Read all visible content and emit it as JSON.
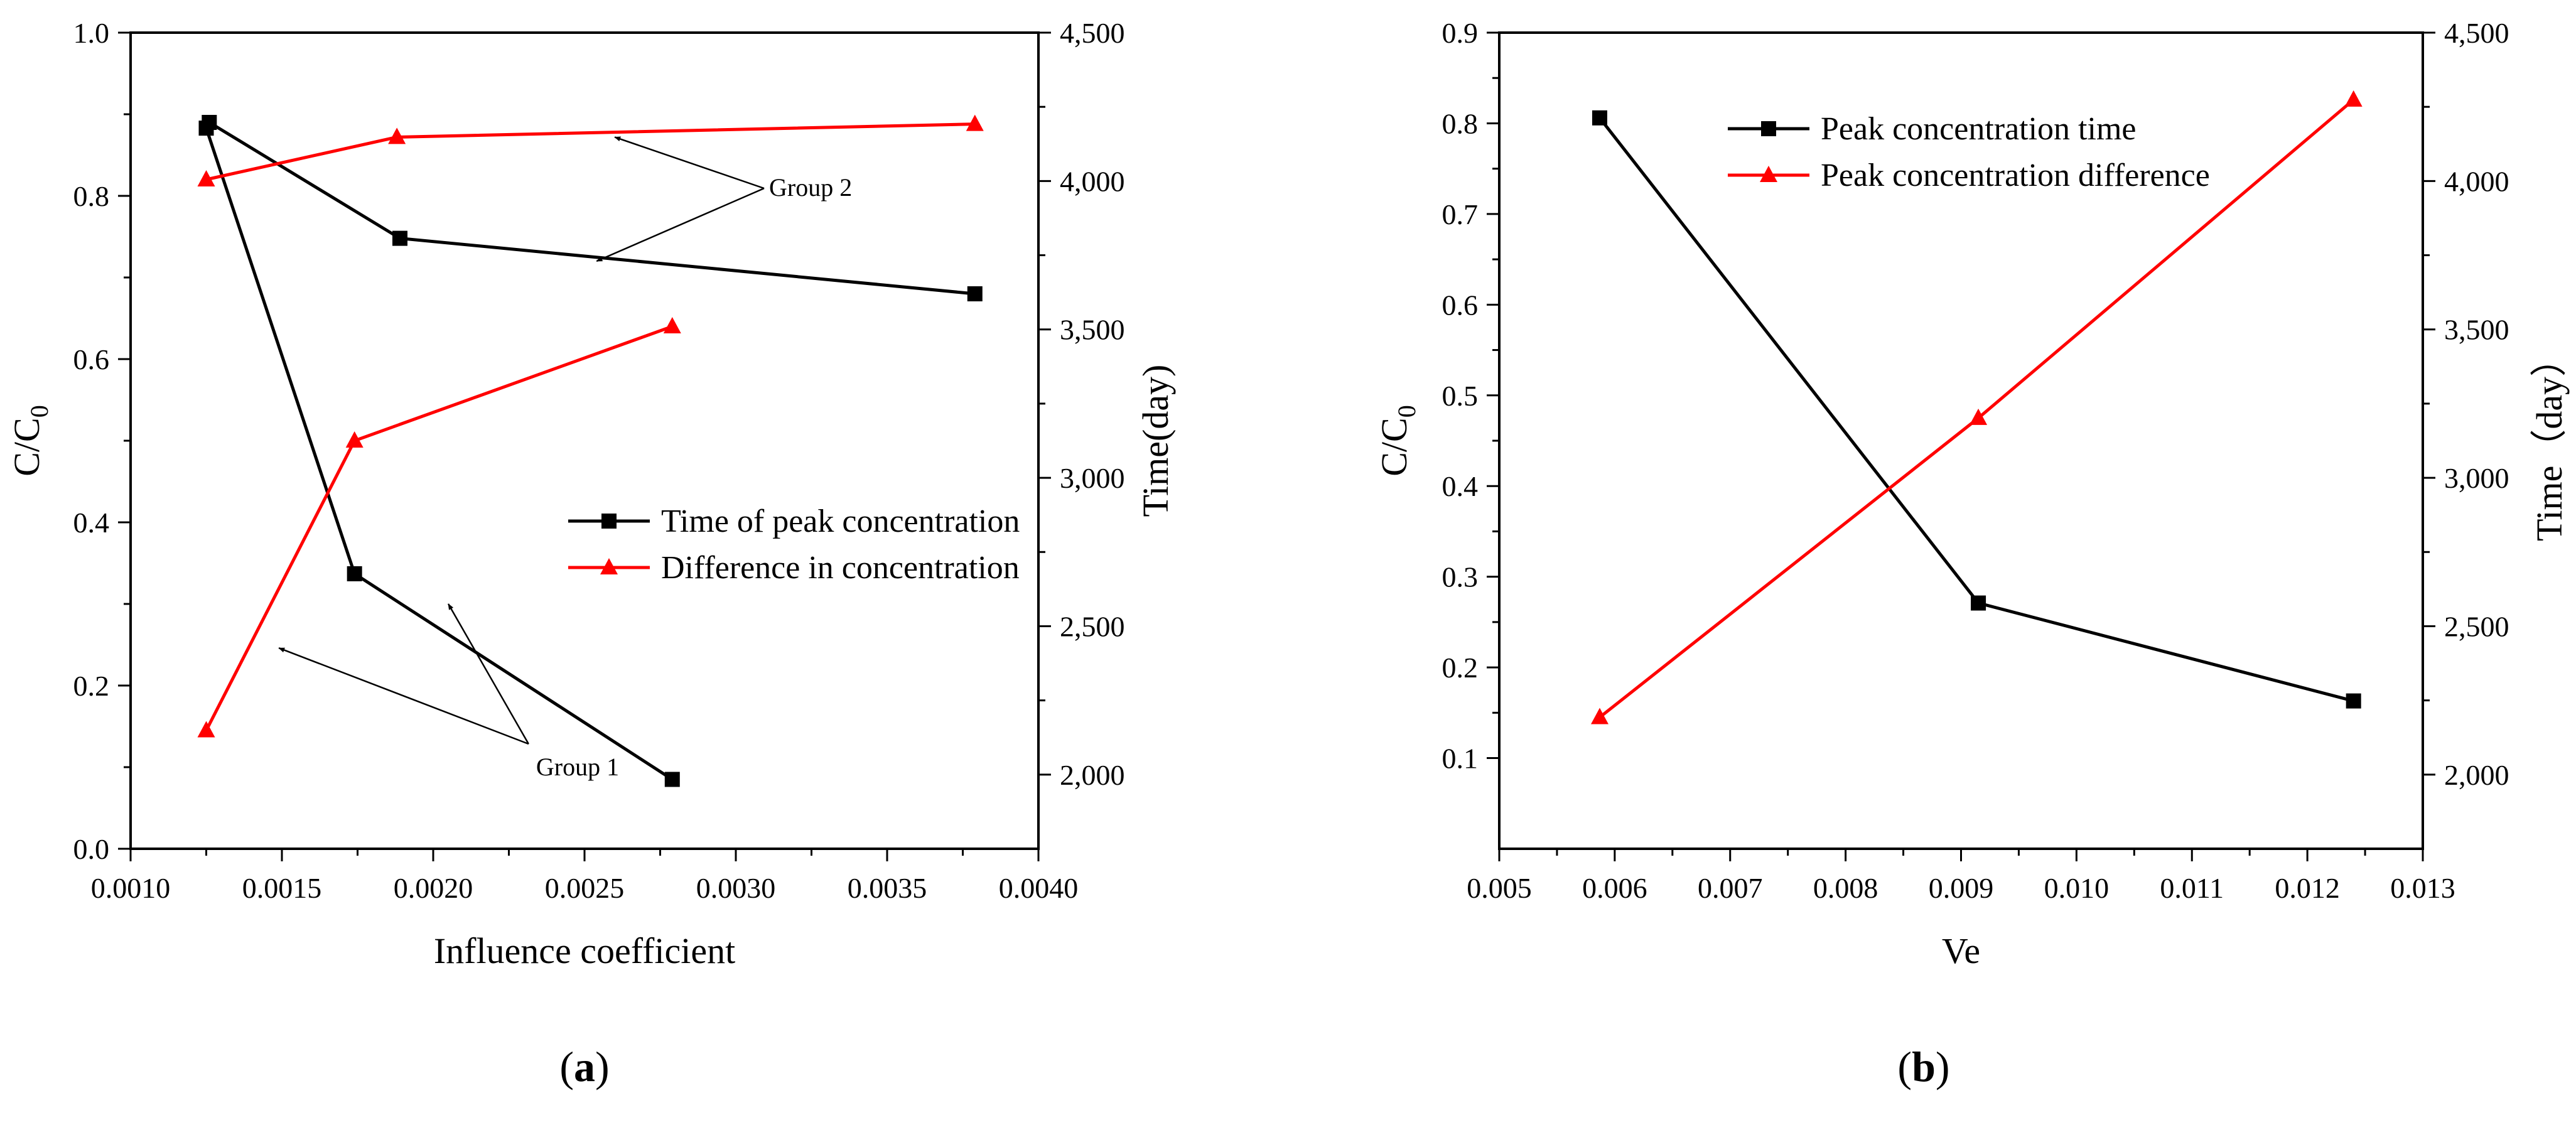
{
  "chart_data": [
    {
      "panel": "a",
      "type": "line",
      "panel_label_letter": "a",
      "xlabel": "Influence coefficient",
      "ylabel_left": {
        "main": "C/C",
        "sub": "0"
      },
      "ylabel_right": "Time(day)",
      "xlim": [
        0.001,
        0.004
      ],
      "ylim_left": [
        0.0,
        1.0
      ],
      "ylim_right": [
        1750,
        4500
      ],
      "x_ticks": [
        0.001,
        0.0015,
        0.002,
        0.0025,
        0.003,
        0.0035,
        0.004
      ],
      "x_tick_labels": [
        "0.0010",
        "0.0015",
        "0.0020",
        "0.0025",
        "0.0030",
        "0.0035",
        "0.0040"
      ],
      "y_left_ticks": [
        0.0,
        0.2,
        0.4,
        0.6,
        0.8,
        1.0
      ],
      "y_left_tick_labels": [
        "0.0",
        "0.2",
        "0.4",
        "0.6",
        "0.8",
        "1.0"
      ],
      "y_right_ticks": [
        2000,
        2500,
        3000,
        3500,
        4000,
        4500
      ],
      "y_right_tick_labels": [
        "2,000",
        "2,500",
        "3,000",
        "3,500",
        "4,000",
        "4,500"
      ],
      "grid": false,
      "legend_position": "center-right",
      "series": [
        {
          "name": "Time of peak concentration",
          "axis": "left",
          "color": "#000000",
          "marker": "square",
          "group": 1,
          "x": [
            0.00125,
            0.00174,
            0.00279
          ],
          "y": [
            0.883,
            0.337,
            0.085
          ]
        },
        {
          "name": "Difference in concentration",
          "axis": "left",
          "color": "#ff0000",
          "marker": "triangle",
          "group": 1,
          "x": [
            0.00125,
            0.00174,
            0.00279
          ],
          "y": [
            0.145,
            0.5,
            0.64
          ]
        },
        {
          "axis": "left",
          "color": "#000000",
          "marker": "square",
          "group": 2,
          "x": [
            0.00126,
            0.00189,
            0.00379
          ],
          "y": [
            0.89,
            0.748,
            0.68
          ]
        },
        {
          "axis": "left",
          "color": "#ff0000",
          "marker": "triangle",
          "group": 2,
          "x": [
            0.00125,
            0.00188,
            0.00379
          ],
          "y": [
            0.82,
            0.872,
            0.888
          ]
        }
      ],
      "annotations": [
        {
          "text": "Group 2",
          "x": 0.00311,
          "y": 0.8,
          "arrows_to": [
            {
              "x": 0.0026,
              "y": 0.872
            },
            {
              "x": 0.00254,
              "y": 0.72
            }
          ]
        },
        {
          "text": "Group 1",
          "x": 0.00234,
          "y": 0.09,
          "arrows_to": [
            {
              "x": 0.00149,
              "y": 0.246
            },
            {
              "x": 0.00205,
              "y": 0.3
            }
          ]
        }
      ]
    },
    {
      "panel": "b",
      "type": "line",
      "panel_label_letter": "b",
      "xlabel": "Ve",
      "ylabel_left": {
        "main": "C/C",
        "sub": "0"
      },
      "ylabel_right": "Time（day）",
      "xlim": [
        0.005,
        0.013
      ],
      "ylim_left": [
        0.0,
        0.9
      ],
      "ylim_right": [
        1750,
        4500
      ],
      "x_ticks": [
        0.005,
        0.006,
        0.007,
        0.008,
        0.009,
        0.01,
        0.011,
        0.012,
        0.013
      ],
      "x_tick_labels": [
        "0.005",
        "0.006",
        "0.007",
        "0.008",
        "0.009",
        "0.010",
        "0.011",
        "0.012",
        "0.013"
      ],
      "y_left_ticks": [
        0.1,
        0.2,
        0.3,
        0.4,
        0.5,
        0.6,
        0.7,
        0.8,
        0.9
      ],
      "y_left_tick_labels": [
        "0.1",
        "0.2",
        "0.3",
        "0.4",
        "0.5",
        "0.6",
        "0.7",
        "0.8",
        "0.9"
      ],
      "y_right_ticks": [
        2000,
        2500,
        3000,
        3500,
        4000,
        4500
      ],
      "y_right_tick_labels": [
        "2,000",
        "2,500",
        "3,000",
        "3,500",
        "4,000",
        "4,500"
      ],
      "grid": false,
      "legend_position": "top-left",
      "series": [
        {
          "name": "Peak concentration time",
          "axis": "left",
          "color": "#000000",
          "marker": "square",
          "x": [
            0.00587,
            0.00915,
            0.0124
          ],
          "y": [
            0.806,
            0.271,
            0.163
          ]
        },
        {
          "name": "Peak concentration difference",
          "axis": "left",
          "color": "#ff0000",
          "marker": "triangle",
          "x": [
            0.00587,
            0.00915,
            0.0124
          ],
          "y": [
            0.145,
            0.475,
            0.826
          ]
        }
      ]
    }
  ]
}
